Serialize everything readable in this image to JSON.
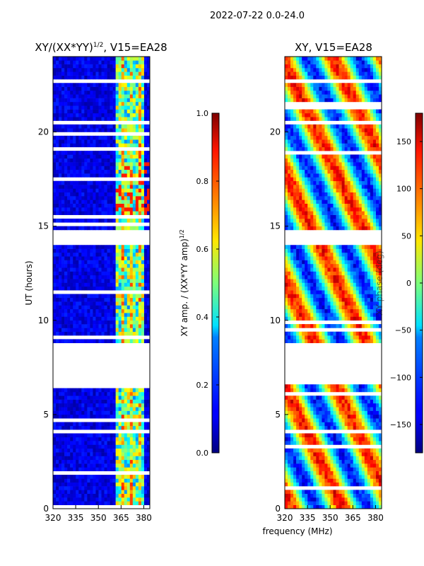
{
  "figure": {
    "suptitle": "2022-07-22 0.0-24.0",
    "shared_xlabel": "frequency (MHz)"
  },
  "chart_data": [
    {
      "type": "heatmap",
      "title": "XY/(XX*YY)",
      "title_exponent": "1/2",
      "title_suffix": ", V15=EA28",
      "xlabel": "",
      "ylabel": "UT (hours)",
      "xlim": [
        320,
        384
      ],
      "ylim": [
        0,
        24
      ],
      "xticks": [
        "320",
        "335",
        "350",
        "365",
        "380"
      ],
      "xtick_values": [
        320,
        335,
        350,
        365,
        380
      ],
      "yticks": [
        "0",
        "5",
        "10",
        "15",
        "20"
      ],
      "ytick_values": [
        0,
        5,
        10,
        15,
        20
      ],
      "colorbar": {
        "label": "XY amp. / (XX*YY amp)",
        "label_exponent": "1/2",
        "range": [
          0,
          1
        ],
        "ticks": [
          "0.0",
          "0.2",
          "0.4",
          "0.6",
          "0.8",
          "1.0"
        ],
        "tick_values": [
          0,
          0.2,
          0.4,
          0.6,
          0.8,
          1.0
        ]
      },
      "data_gaps_hours": [
        [
          6.7,
          8.7
        ],
        [
          14.1,
          14.7
        ]
      ]
    },
    {
      "type": "heatmap",
      "title": "XY, V15=EA28",
      "xlabel": "frequency (MHz)",
      "ylabel": "",
      "xlim": [
        320,
        384
      ],
      "ylim": [
        0,
        24
      ],
      "xticks": [
        "320",
        "335",
        "350",
        "365",
        "380"
      ],
      "xtick_values": [
        320,
        335,
        350,
        365,
        380
      ],
      "yticks": [
        "0",
        "5",
        "10",
        "15",
        "20"
      ],
      "ytick_values": [
        0,
        5,
        10,
        15,
        20
      ],
      "colorbar": {
        "label": "XY phase (deg)",
        "range": [
          -180,
          180
        ],
        "ticks": [
          "−150",
          "−100",
          "−50",
          "0",
          "50",
          "100",
          "150"
        ],
        "tick_values": [
          -150,
          -100,
          -50,
          0,
          50,
          100,
          150
        ]
      },
      "data_gaps_hours": [
        [
          6.7,
          8.7
        ],
        [
          14.1,
          14.7
        ]
      ]
    }
  ]
}
